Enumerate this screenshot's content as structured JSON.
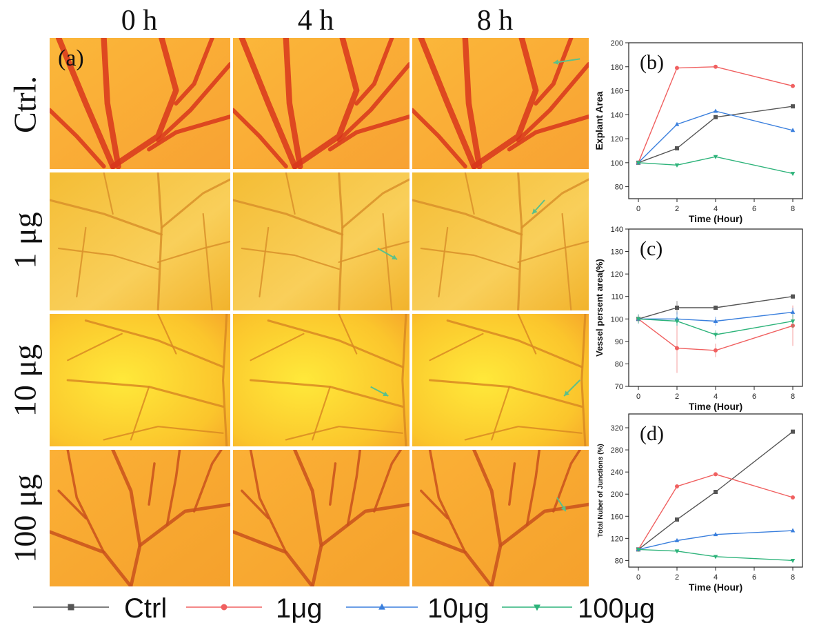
{
  "figure": {
    "column_headers": [
      "0 h",
      "4 h",
      "8 h"
    ],
    "row_headers": [
      "Ctrl.",
      "1 μg",
      "10 μg",
      "100 μg"
    ],
    "panel_labels": [
      "(a)",
      "(b)",
      "(c)",
      "(d)"
    ]
  },
  "legend": [
    "Ctrl",
    "1μg",
    "10μg",
    "100μg"
  ],
  "colors": {
    "Ctrl": "#555555",
    "1μg": "#f06060",
    "10μg": "#3a7fdd",
    "100μg": "#2db37a",
    "arrow": "#5cc08a"
  },
  "chart_data": [
    {
      "type": "line",
      "panel": "(b)",
      "xlabel": "Time (Hour)",
      "ylabel": "Explant Area",
      "xlim": [
        -0.5,
        8.5
      ],
      "ylim": [
        70,
        200
      ],
      "xticks": [
        0,
        2,
        4,
        6,
        8
      ],
      "yticks": [
        80,
        100,
        120,
        140,
        160,
        180,
        200
      ],
      "x": [
        0,
        2,
        4,
        8
      ],
      "series": [
        {
          "name": "Ctrl",
          "values": [
            100,
            112,
            138,
            147
          ]
        },
        {
          "name": "1μg",
          "values": [
            100,
            179,
            180,
            164
          ]
        },
        {
          "name": "10μg",
          "values": [
            100,
            132,
            143,
            127
          ]
        },
        {
          "name": "100μg",
          "values": [
            100,
            98,
            105,
            91
          ]
        }
      ]
    },
    {
      "type": "line",
      "panel": "(c)",
      "xlabel": "Time (Hour)",
      "ylabel": "Vessel persent area(%)",
      "xlim": [
        -0.5,
        8.5
      ],
      "ylim": [
        70,
        140
      ],
      "xticks": [
        0,
        2,
        4,
        6,
        8
      ],
      "yticks": [
        70,
        80,
        90,
        100,
        110,
        120,
        130,
        140
      ],
      "x": [
        0,
        2,
        4,
        8
      ],
      "series": [
        {
          "name": "Ctrl",
          "values": [
            100,
            105,
            105,
            110
          ],
          "errors": [
            2,
            3,
            1,
            1
          ]
        },
        {
          "name": "1μg",
          "values": [
            100,
            87,
            86,
            97
          ],
          "errors": [
            2,
            11,
            3,
            9
          ]
        },
        {
          "name": "10μg",
          "values": [
            100,
            100,
            99,
            103
          ],
          "errors": [
            2,
            3,
            2,
            2
          ]
        },
        {
          "name": "100μg",
          "values": [
            100,
            99,
            93,
            99
          ],
          "errors": [
            2,
            2,
            2,
            3
          ]
        }
      ]
    },
    {
      "type": "line",
      "panel": "(d)",
      "xlabel": "Time (Hour)",
      "ylabel": "Total Nuber of Junctions (%)",
      "xlim": [
        -0.5,
        8.5
      ],
      "ylim": [
        68,
        345
      ],
      "xticks": [
        0,
        2,
        4,
        6,
        8
      ],
      "yticks": [
        80,
        120,
        160,
        200,
        240,
        280,
        320
      ],
      "x": [
        0,
        2,
        4,
        8
      ],
      "series": [
        {
          "name": "Ctrl",
          "values": [
            100,
            154,
            204,
            313
          ]
        },
        {
          "name": "1μg",
          "values": [
            100,
            214,
            236,
            194
          ]
        },
        {
          "name": "10μg",
          "values": [
            100,
            116,
            127,
            134
          ]
        },
        {
          "name": "100μg",
          "values": [
            100,
            97,
            87,
            80
          ]
        }
      ]
    }
  ]
}
